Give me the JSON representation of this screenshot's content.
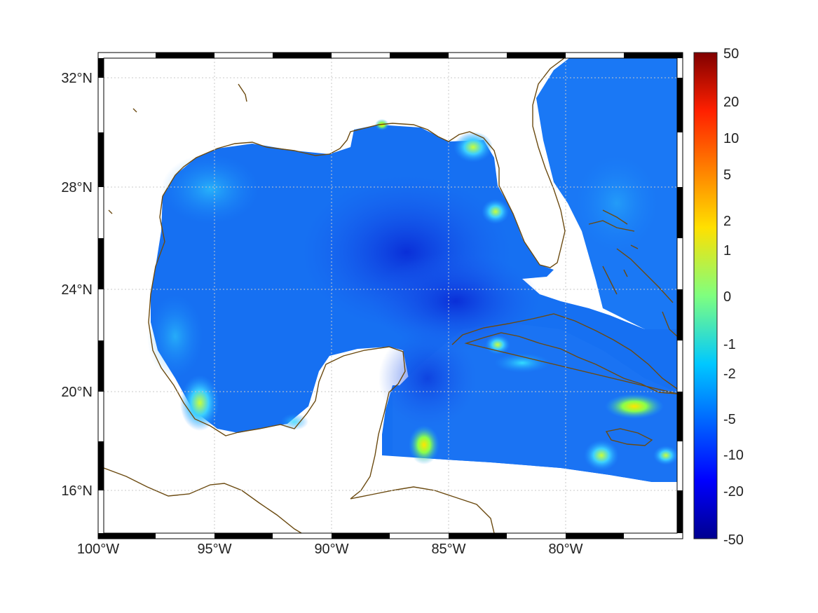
{
  "map": {
    "type": "heatmap",
    "projection": "mercator",
    "lon_range": [
      -100,
      -75
    ],
    "lat_range": [
      14.3,
      33.0
    ],
    "x_ticks": [
      {
        "label": "100°W",
        "lon": -100
      },
      {
        "label": "95°W",
        "lon": -95
      },
      {
        "label": "90°W",
        "lon": -90
      },
      {
        "label": "85°W",
        "lon": -85
      },
      {
        "label": "80°W",
        "lon": -80
      }
    ],
    "y_ticks": [
      {
        "label": "32°N",
        "lat": 32
      },
      {
        "label": "28°N",
        "lat": 28
      },
      {
        "label": "24°N",
        "lat": 24
      },
      {
        "label": "20°N",
        "lat": 20
      },
      {
        "label": "16°N",
        "lat": 16
      }
    ],
    "grid": true,
    "coastline_color": "#6b4a10",
    "land_color": "#ffffff"
  },
  "colorbar": {
    "colormap": "jet",
    "tick_labels": [
      "50",
      "20",
      "10",
      "5",
      "2",
      "1",
      "0",
      "-1",
      "-2",
      "-5",
      "-10",
      "-20",
      "-50"
    ]
  },
  "chart_data": {
    "type": "heatmap",
    "description_units": "none printed",
    "field_range": [
      -50,
      50
    ],
    "typical_value_over_gulf": -5,
    "colorbar_ticks": [
      50,
      20,
      10,
      5,
      2,
      1,
      0,
      -1,
      -2,
      -5,
      -10,
      -20,
      -50
    ]
  }
}
